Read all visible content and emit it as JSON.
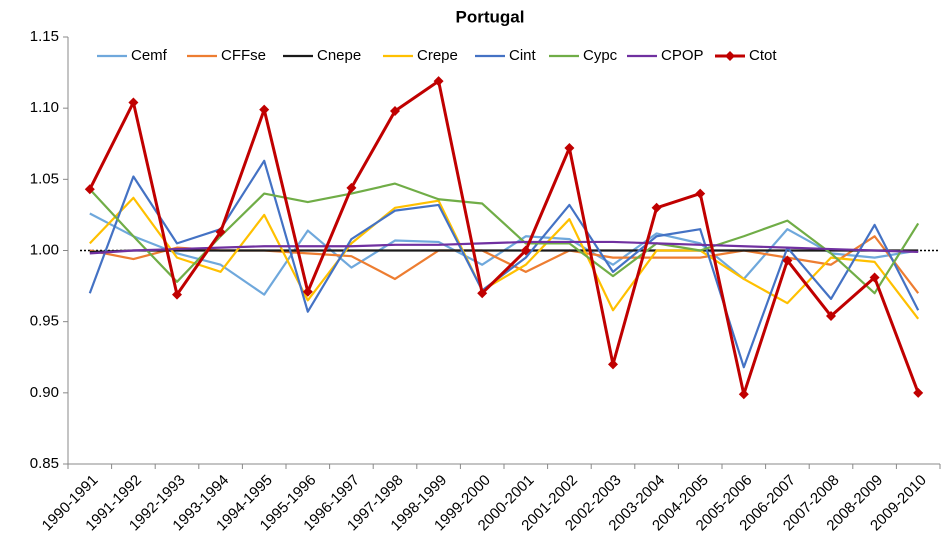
{
  "chart_data": {
    "type": "line",
    "title": "Portugal",
    "categories": [
      "1990-1991",
      "1991-1992",
      "1992-1993",
      "1993-1994",
      "1994-1995",
      "1995-1996",
      "1996-1997",
      "1997-1998",
      "1998-1999",
      "1999-2000",
      "2000-2001",
      "2001-2002",
      "2002-2003",
      "2003-2004",
      "2004-2005",
      "2005-2006",
      "2006-2007",
      "2007-2008",
      "2008-2009",
      "2009-2010"
    ],
    "ylim": [
      0.85,
      1.15
    ],
    "yticks": [
      0.85,
      {
        "value": 0.9,
        "label": "0.90"
      },
      0.95,
      {
        "value": 1,
        "label": "1.00"
      },
      1.05,
      {
        "value": 1.1,
        "label": "1.10"
      },
      1.15
    ],
    "reference_line": 1,
    "grid": false,
    "series": [
      {
        "name": "Cemf",
        "color": "#6fa8dc",
        "values": [
          1.026,
          1.01,
          0.998,
          0.99,
          0.969,
          1.014,
          0.988,
          1.007,
          1.006,
          0.99,
          1.01,
          1.008,
          0.99,
          1.012,
          1.005,
          0.98,
          1.015,
          0.998,
          0.995,
          1.0
        ]
      },
      {
        "name": "CFFse",
        "color": "#ed7d31",
        "values": [
          1.0,
          0.994,
          1.002,
          1.0,
          1.0,
          0.998,
          0.996,
          0.98,
          1.0,
          1.0,
          0.985,
          1.0,
          0.995,
          0.995,
          0.995,
          1.0,
          0.995,
          0.99,
          1.01,
          0.97
        ]
      },
      {
        "name": "Cnepe",
        "color": "#1a1a1a",
        "values": [
          0.999,
          1.0,
          1.0,
          1.0,
          1.0,
          1.0,
          1.0,
          1.0,
          1.0,
          1.0,
          1.0,
          1.0,
          1.0,
          1.0,
          1.0,
          1.0,
          1.0,
          1.0,
          1.0,
          1.0
        ]
      },
      {
        "name": "Crepe",
        "color": "#ffc000",
        "values": [
          1.005,
          1.037,
          0.995,
          0.985,
          1.025,
          0.965,
          1.005,
          1.03,
          1.035,
          0.972,
          0.99,
          1.022,
          0.958,
          1.0,
          1.0,
          0.98,
          0.963,
          0.995,
          0.992,
          0.952
        ]
      },
      {
        "name": "Cint",
        "color": "#4472c4",
        "values": [
          0.97,
          1.052,
          1.005,
          1.015,
          1.063,
          0.957,
          1.008,
          1.028,
          1.032,
          0.972,
          0.995,
          1.032,
          0.985,
          1.01,
          1.015,
          0.918,
          1.002,
          0.966,
          1.018,
          0.958
        ]
      },
      {
        "name": "Cypc",
        "color": "#70ad47",
        "values": [
          1.043,
          1.01,
          0.978,
          1.01,
          1.04,
          1.034,
          1.04,
          1.047,
          1.036,
          1.033,
          1.005,
          1.005,
          0.982,
          1.005,
          1.0,
          1.01,
          1.021,
          0.998,
          0.97,
          1.019
        ]
      },
      {
        "name": "CPOP",
        "color": "#7030a0",
        "values": [
          0.998,
          1.0,
          1.001,
          1.002,
          1.003,
          1.003,
          1.003,
          1.004,
          1.004,
          1.005,
          1.006,
          1.006,
          1.006,
          1.005,
          1.004,
          1.003,
          1.002,
          1.001,
          1.0,
          0.999
        ]
      },
      {
        "name": "Ctot",
        "color": "#c00000",
        "marker": "diamond",
        "values": [
          1.043,
          1.104,
          0.969,
          1.013,
          1.099,
          0.971,
          1.044,
          1.098,
          1.119,
          0.97,
          1.0,
          1.072,
          0.92,
          1.03,
          1.04,
          0.899,
          0.993,
          0.954,
          0.981,
          0.9
        ]
      }
    ]
  }
}
